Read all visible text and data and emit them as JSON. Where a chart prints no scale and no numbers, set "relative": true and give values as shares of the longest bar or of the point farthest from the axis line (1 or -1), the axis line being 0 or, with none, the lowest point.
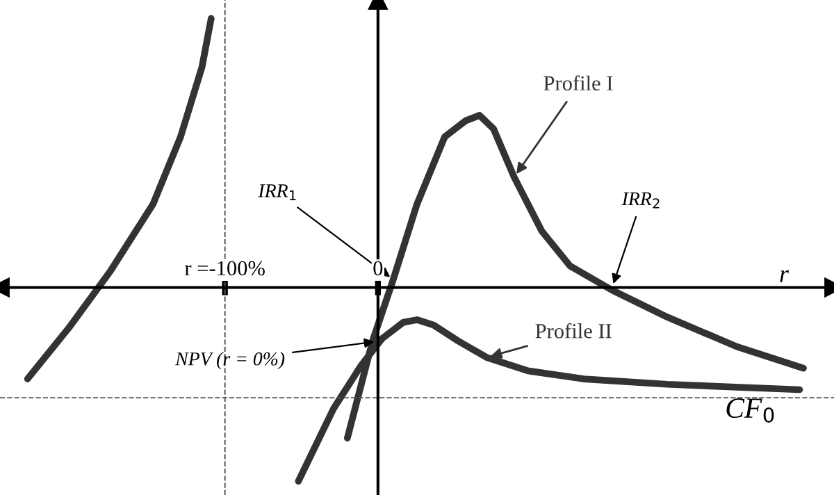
{
  "chart_data": {
    "type": "line",
    "relative": true,
    "xlabel": "r",
    "xlim": [
      -247,
      298
    ],
    "xticks": [
      {
        "value": -100,
        "label": "r =-100%"
      },
      {
        "value": 0,
        "label": "0"
      }
    ],
    "grid": false,
    "legend": false,
    "marker": "none",
    "line_style": "solid",
    "series": [
      {
        "color": "#333333",
        "x": [
          -229,
          -202,
          -175,
          -147,
          -129,
          -115,
          -109
        ],
        "values": [
          -0.34,
          -0.15,
          0.06,
          0.31,
          0.56,
          0.82,
          1.0
        ]
      },
      {
        "name": "Profile I",
        "color": "#333333",
        "x": [
          -20,
          -3.6,
          10,
          25.5,
          43.6,
          57.3,
          66.4,
          75.5,
          89,
          107,
          125.5,
          153,
          189,
          234.5,
          278
        ],
        "values": [
          -0.56,
          -0.2,
          0.03,
          0.31,
          0.56,
          0.62,
          0.64,
          0.59,
          0.41,
          0.21,
          0.08,
          -0.01,
          -0.11,
          -0.22,
          -0.3
        ]
      },
      {
        "name": "Profile II",
        "color": "#333333",
        "x": [
          -52,
          -29,
          -11,
          2.7,
          16.4,
          25.5,
          36.4,
          52.7,
          71,
          98,
          134.5,
          189,
          275.5
        ],
        "values": [
          -0.72,
          -0.45,
          -0.29,
          -0.19,
          -0.13,
          -0.12,
          -0.14,
          -0.2,
          -0.26,
          -0.31,
          -0.34,
          -0.36,
          -0.38
        ]
      }
    ],
    "ref_lines": [
      {
        "axis": "x",
        "value": -100,
        "line_style": "dashed",
        "color": "#555555"
      },
      {
        "axis": "y",
        "value": -0.41,
        "label": "CF$_{0}$",
        "line_style": "dashed",
        "color": "#555555"
      }
    ],
    "annotations": [
      {
        "text": "IRR$_{1}$",
        "x": 10,
        "y": 0.03
      },
      {
        "text": "IRR$_{2}$",
        "x": 153,
        "y": 0
      },
      {
        "text": "NPV (r = 0%)",
        "x": 0,
        "y": -0.2
      }
    ]
  }
}
